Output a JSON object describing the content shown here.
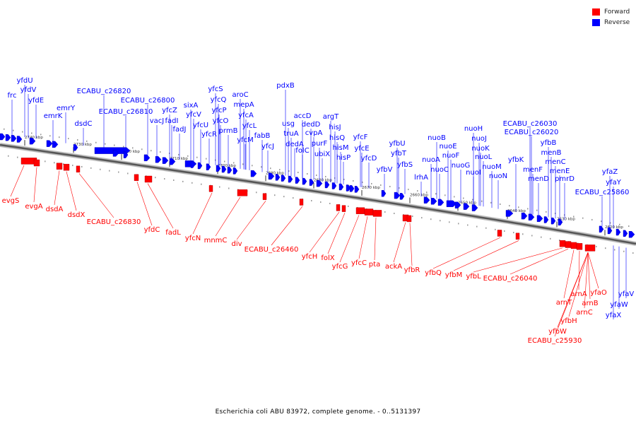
{
  "title": "Escherichia coli ABU 83972, complete genome. - 0..5131397",
  "legend": [
    {
      "label": "Forward",
      "color": "#ff0000"
    },
    {
      "label": "Reverse",
      "color": "#0000ff"
    }
  ],
  "colors": {
    "forward": "#ff0000",
    "reverse": "#0000ff",
    "backbone": "#555555"
  },
  "ticks": [
    "2740 kbp",
    "2730 kbp",
    "2720 kbp",
    "2710 kbp",
    "2700 kbp",
    "2690 kbp",
    "2680 kbp",
    "2670 kbp",
    "2660 kbp",
    "2650 kbp",
    "2640 kbp",
    "2630 kbp",
    "2620 kbp"
  ],
  "reverse_labels": [
    "frc",
    "yfdU",
    "yfdV",
    "yfdE",
    "emrK",
    "emrY",
    "dsdC",
    "ECABU_c26820",
    "ECABU_c26810",
    "ECABU_c26800",
    "vacJ",
    "yfcZ",
    "fadI",
    "fadJ",
    "sixA",
    "yfcV",
    "yfcU",
    "yfcS",
    "yfcQ",
    "yfcP",
    "yfcO",
    "yfcR",
    "prmB",
    "aroC",
    "mepA",
    "yfcA",
    "yfcL",
    "yfcM",
    "fabB",
    "yfcJ",
    "pdxB",
    "usg",
    "truA",
    "dedA",
    "accD",
    "dedD",
    "folC",
    "cvpA",
    "purF",
    "ubiX",
    "argT",
    "hisJ",
    "hisQ",
    "hisM",
    "hisP",
    "yfcF",
    "yfcE",
    "yfcD",
    "yfbV",
    "yfbU",
    "yfbT",
    "yfbS",
    "lrhA",
    "nuoA",
    "nuoB",
    "nuoC",
    "nuoE",
    "nuoF",
    "nuoG",
    "nuoH",
    "nuoI",
    "nuoJ",
    "nuoK",
    "nuoL",
    "nuoM",
    "nuoN",
    "yfbK",
    "ECABU_c26030",
    "ECABU_c26020",
    "menF",
    "menD",
    "yfbB",
    "menB",
    "menC",
    "menE",
    "pmrD",
    "yfaZ",
    "yfaY",
    "ECABU_c25860",
    "yfaV",
    "yfaW",
    "yfaX"
  ],
  "forward_labels": [
    "evgS",
    "evgA",
    "dsdA",
    "dsdX",
    "ECABU_c26830",
    "yfdC",
    "fadL",
    "yfcN",
    "mnmC",
    "div",
    "ECABU_c26460",
    "yfcH",
    "folX",
    "yfcG",
    "yfcC",
    "pta",
    "ackA",
    "yfbR",
    "yfbQ",
    "yfbM",
    "yfbL",
    "ECABU_c26040",
    "arnT",
    "arnA",
    "yfaO",
    "arnB",
    "arnC",
    "yfbH",
    "yfbW",
    "ECABU_c25930"
  ]
}
